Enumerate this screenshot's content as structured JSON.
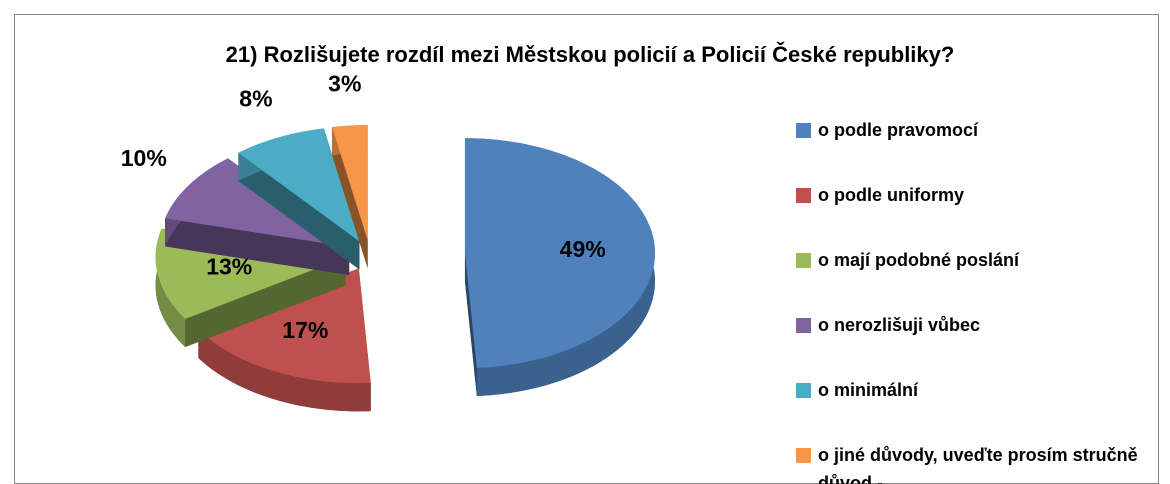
{
  "chart_data": {
    "type": "pie",
    "title": "21)  Rozlišujete rozdíl mezi Městskou policií a Policií České republiky?",
    "categories": [
      "o   podle pravomocí",
      "o   podle uniformy",
      "o   mají podobné poslání",
      "o   nerozlišuji vůbec",
      "o   minimální",
      "o   jiné důvody, uveďte prosím stručně důvod -"
    ],
    "values": [
      49,
      17,
      13,
      10,
      8,
      3
    ],
    "value_labels": [
      "49%",
      "17%",
      "13%",
      "10%",
      "8%",
      "3%"
    ],
    "colors": [
      "#4f81bd",
      "#c0504d",
      "#9bbb59",
      "#8064a2",
      "#4bacc6",
      "#f79646"
    ],
    "legend": "right"
  }
}
